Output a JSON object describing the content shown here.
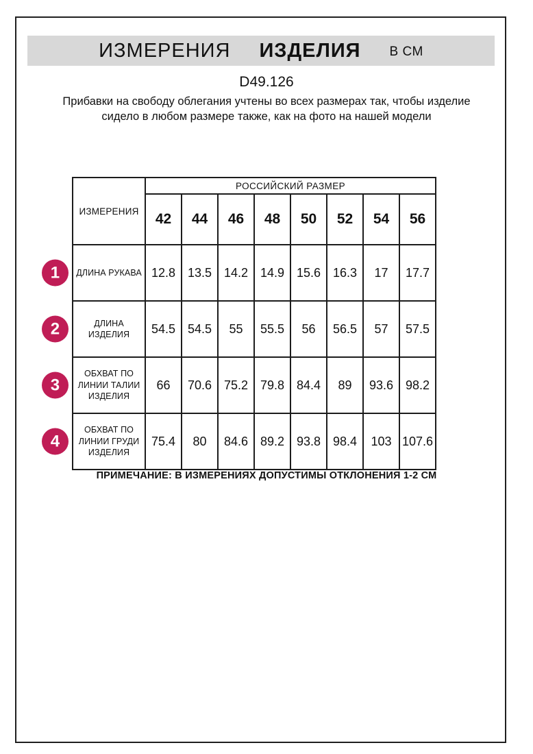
{
  "colors": {
    "accent": "#c01d56",
    "band_background": "#d8d8d8",
    "border": "#1c1c1c"
  },
  "header": {
    "title_word1": "ИЗМЕРЕНИЯ",
    "title_word2": "ИЗДЕЛИЯ",
    "title_units": "В СМ",
    "product_code": "D49.126",
    "description": "Прибавки на свободу облегания учтены во всех размерах так, чтобы изделие сидело в любом размере также, как на фото на нашей модели"
  },
  "table": {
    "corner_label": "ИЗМЕРЕНИЯ",
    "group_header": "РОССИЙСКИЙ РАЗМЕР",
    "sizes": [
      "42",
      "44",
      "46",
      "48",
      "50",
      "52",
      "54",
      "56"
    ],
    "rows": [
      {
        "num": "1",
        "label": "ДЛИНА РУКАВА",
        "values": [
          "12.8",
          "13.5",
          "14.2",
          "14.9",
          "15.6",
          "16.3",
          "17",
          "17.7"
        ]
      },
      {
        "num": "2",
        "label": "ДЛИНА ИЗДЕЛИЯ",
        "values": [
          "54.5",
          "54.5",
          "55",
          "55.5",
          "56",
          "56.5",
          "57",
          "57.5"
        ]
      },
      {
        "num": "3",
        "label": "ОБХВАТ ПО ЛИНИИ ТАЛИИ ИЗДЕЛИЯ",
        "values": [
          "66",
          "70.6",
          "75.2",
          "79.8",
          "84.4",
          "89",
          "93.6",
          "98.2"
        ]
      },
      {
        "num": "4",
        "label": "ОБХВАТ ПО ЛИНИИ ГРУДИ ИЗДЕЛИЯ",
        "values": [
          "75.4",
          "80",
          "84.6",
          "89.2",
          "93.8",
          "98.4",
          "103",
          "107.6"
        ]
      }
    ]
  },
  "footer": {
    "note": "ПРИМЕЧАНИЕ: В ИЗМЕРЕНИЯХ ДОПУСТИМЫ ОТКЛОНЕНИЯ 1-2 СМ"
  }
}
